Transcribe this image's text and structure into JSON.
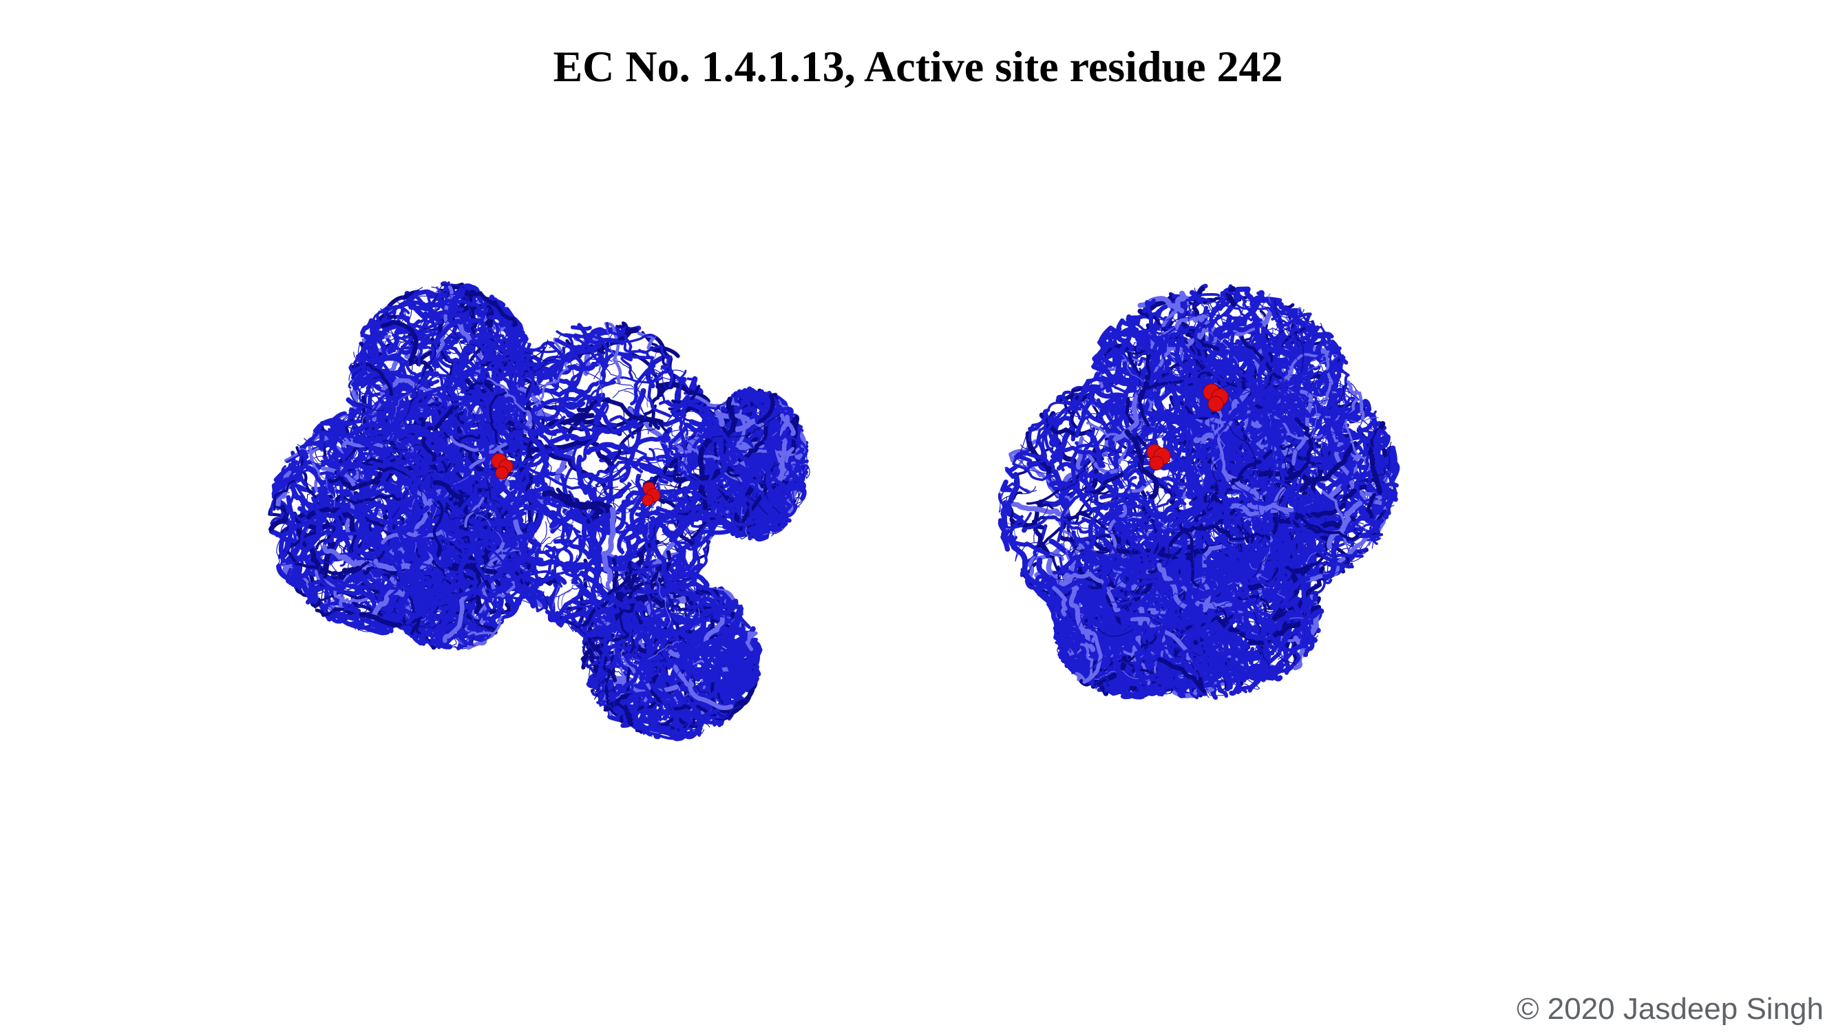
{
  "slide": {
    "title": "EC No. 1.4.1.13, Active site residue 242",
    "copyright": "© 2020 Jasdeep Singh"
  },
  "colors": {
    "ribbon": "#1c1cd0",
    "ribbon_dark": "#0a0a8a",
    "ribbon_light": "#6a6aee",
    "active_site": "#e01010",
    "background": "#ffffff",
    "copyright_text": "#5f6368"
  },
  "images": {
    "left_structure": "protein-ribbon-cartoon",
    "right_structure": "protein-ribbon-cartoon",
    "highlight": "active-site-residue-spheres"
  }
}
